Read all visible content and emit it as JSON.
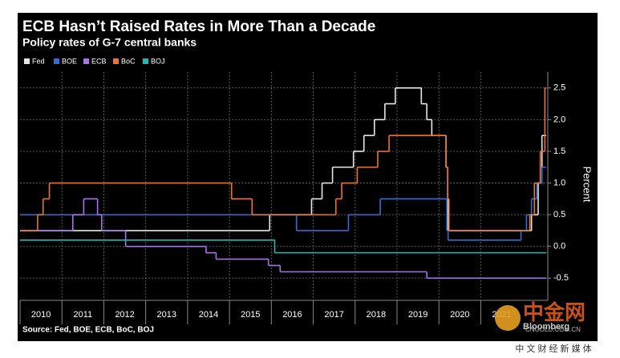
{
  "chart_data": {
    "type": "step-line",
    "title": "ECB Hasn’t Raised Rates in More Than a Decade",
    "subtitle": "Policy rates of G-7 central banks",
    "y_label": "Percent",
    "source": "Source: Fed, BOE, ECB, BoC, BOJ",
    "xlim": [
      2010,
      2022.6
    ],
    "xticks": [
      {
        "value": 2010,
        "label": "2010"
      },
      {
        "value": 2011,
        "label": "2011"
      },
      {
        "value": 2012,
        "label": "2012"
      },
      {
        "value": 2013,
        "label": "2013"
      },
      {
        "value": 2014,
        "label": "2014"
      },
      {
        "value": 2015,
        "label": "2015"
      },
      {
        "value": 2016,
        "label": "2016"
      },
      {
        "value": 2017,
        "label": "2017"
      },
      {
        "value": 2018,
        "label": "2018"
      },
      {
        "value": 2019,
        "label": "2019"
      },
      {
        "value": 2020,
        "label": "2020"
      },
      {
        "value": 2021,
        "label": "2021"
      }
    ],
    "ylim": [
      -0.85,
      2.75
    ],
    "yticks": [
      2.5,
      {
        "value": 2.0,
        "label": "2.0"
      },
      1.5,
      {
        "value": 1.0,
        "label": "1.0"
      },
      0.5,
      {
        "value": 0.0,
        "label": "0.0"
      },
      -0.5
    ],
    "grid": true,
    "series": [
      {
        "name": "Fed",
        "color": "#e6e6e6",
        "x": [
          2010,
          2015.96,
          2016.96,
          2017.21,
          2017.46,
          2017.96,
          2018.21,
          2018.46,
          2018.71,
          2018.96,
          2019.58,
          2019.71,
          2019.83,
          2020.17,
          2020.21,
          2022.21,
          2022.37,
          2022.46,
          2022.55
        ],
        "values": [
          0.25,
          0.5,
          0.75,
          1.0,
          1.25,
          1.5,
          1.75,
          2.0,
          2.25,
          2.5,
          2.25,
          2.0,
          1.75,
          1.25,
          0.25,
          0.5,
          1.0,
          1.75,
          1.75
        ]
      },
      {
        "name": "BOE",
        "color": "#2f6fd0",
        "x": [
          2010,
          2016.6,
          2017.84,
          2018.6,
          2020.19,
          2020.22,
          2021.96,
          2022.09,
          2022.21,
          2022.34,
          2022.46,
          2022.55
        ],
        "values": [
          0.5,
          0.25,
          0.5,
          0.75,
          0.25,
          0.1,
          0.25,
          0.5,
          0.75,
          1.0,
          1.25,
          1.25
        ]
      },
      {
        "name": "ECB",
        "color": "#a872e8",
        "x": [
          2010,
          2011.26,
          2011.52,
          2011.85,
          2011.95,
          2012.52,
          2014.44,
          2014.68,
          2015.93,
          2016.21,
          2019.71,
          2022.55
        ],
        "values": [
          0.25,
          0.5,
          0.75,
          0.5,
          0.25,
          0,
          -0.1,
          -0.2,
          -0.3,
          -0.4,
          -0.5,
          -0.5
        ]
      },
      {
        "name": "BoC",
        "color": "#ee7330",
        "x": [
          2010,
          2010.42,
          2010.55,
          2010.7,
          2015.05,
          2015.54,
          2017.54,
          2017.68,
          2018.05,
          2018.54,
          2018.81,
          2020.17,
          2020.21,
          2020.24,
          2022.17,
          2022.28,
          2022.42,
          2022.53,
          2022.55
        ],
        "values": [
          0.25,
          0.5,
          0.75,
          1.0,
          0.75,
          0.5,
          0.75,
          1.0,
          1.25,
          1.5,
          1.75,
          1.25,
          0.75,
          0.25,
          0.5,
          1.0,
          1.5,
          2.5,
          2.5
        ]
      },
      {
        "name": "BOJ",
        "color": "#22b8b8",
        "x": [
          2010,
          2016.08,
          2022.55
        ],
        "values": [
          0.1,
          -0.1,
          -0.1
        ]
      }
    ],
    "watermark": {
      "logo": "中金网",
      "site": "CNGOLD.COM.CN",
      "tagline": "中 文 财 经 新 媒 体",
      "brand": "Bloomberg"
    }
  }
}
